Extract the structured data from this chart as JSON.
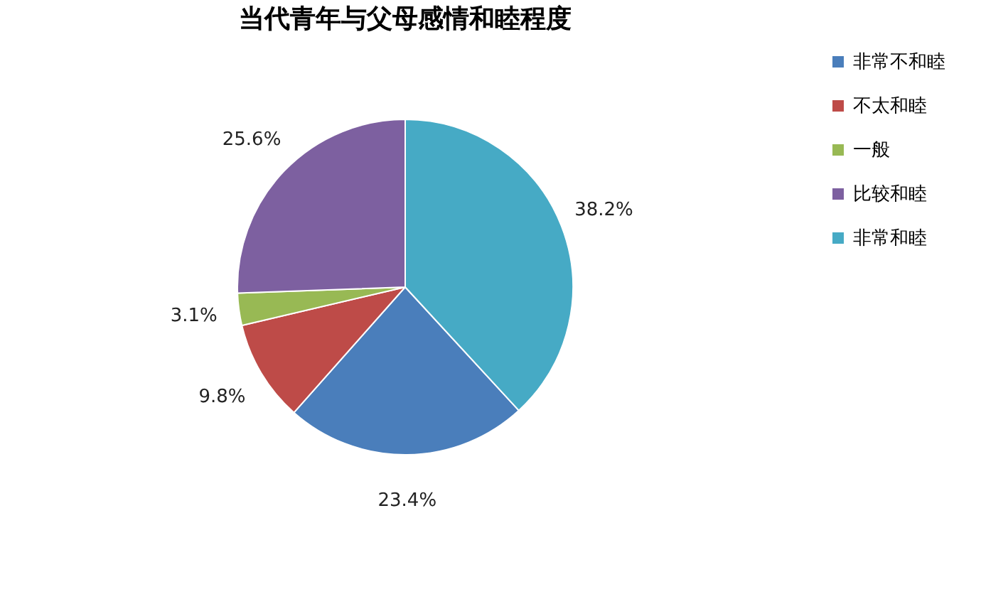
{
  "chart_data": {
    "type": "pie",
    "title": "当代青年与父母感情和睦程度",
    "categories": [
      "非常不和睦",
      "不太和睦",
      "一般",
      "比较和睦",
      "非常和睦"
    ],
    "values": [
      23.4,
      9.8,
      3.1,
      25.6,
      38.2
    ],
    "colors": [
      "#4a7ebb",
      "#be4b48",
      "#98b954",
      "#7d60a0",
      "#46aac5"
    ],
    "value_labels": [
      "23.4%",
      "9.8%",
      "3.1%",
      "25.6%",
      "38.2%"
    ],
    "legend": "right"
  }
}
